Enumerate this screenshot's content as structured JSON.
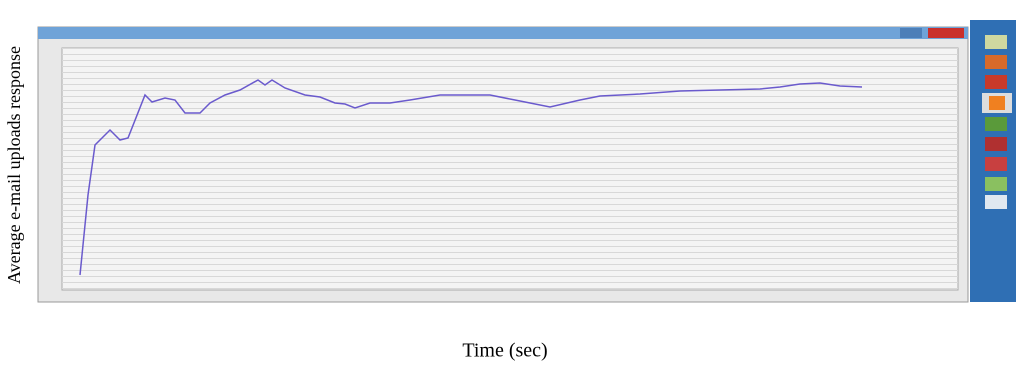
{
  "chart_data": {
    "type": "line",
    "y_label": "Average e-mail uploads response",
    "x_label": "Time (sec)",
    "xlim": [
      0,
      896
    ],
    "ylim": [
      0,
      242
    ],
    "x": [
      18,
      26,
      33,
      48,
      58,
      66,
      83,
      90,
      103,
      113,
      123,
      138,
      148,
      163,
      178,
      196,
      203,
      210,
      223,
      243,
      258,
      273,
      283,
      293,
      308,
      328,
      348,
      378,
      428,
      453,
      488,
      518,
      538,
      578,
      618,
      658,
      698,
      718,
      738,
      758,
      778,
      800
    ],
    "series": [
      {
        "color": "#6a5acd",
        "values": [
          15,
          95,
          145,
          160,
          150,
          152,
          195,
          188,
          192,
          190,
          177,
          177,
          187,
          195,
          200,
          210,
          205,
          210,
          202,
          195,
          193,
          187,
          186,
          182,
          187,
          187,
          190,
          195,
          195,
          190,
          183,
          190,
          194,
          196,
          199,
          200,
          201,
          203,
          206,
          207,
          204,
          203
        ]
      }
    ],
    "grid": true
  }
}
